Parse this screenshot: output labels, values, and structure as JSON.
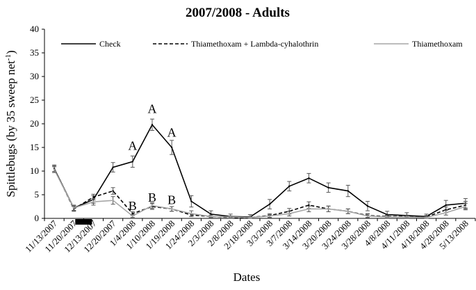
{
  "chart_data": {
    "type": "line",
    "title": "2007/2008 - Adults",
    "xlabel": "Dates",
    "ylabel": "Spittlebugs (by 35 sweep net",
    "ylabel_sup": "-1",
    "ylabel_close": ")",
    "ylim": [
      0,
      40
    ],
    "yticks": [
      0,
      5,
      10,
      15,
      20,
      25,
      30,
      35,
      40
    ],
    "grid": false,
    "legend_position": "top",
    "categories": [
      "11/13/2007",
      "11/20/2007",
      "12/13/2007",
      "12/20/2007",
      "1/4/2008",
      "1/10/2008",
      "1/19/2008",
      "1/24/2008",
      "2/3/2008",
      "2/8/2008",
      "2/18/2008",
      "3/3/2008",
      "3/7/2008",
      "3/14/2008",
      "3/20/2008",
      "3/24/2008",
      "3/28/2008",
      "4/8/2008",
      "4/11/2008",
      "4/18/2008",
      "4/28/2008",
      "5/13/2008"
    ],
    "series": [
      {
        "name": "Check",
        "color": "#000000",
        "dash": "solid",
        "values": [
          10.5,
          2.2,
          4.0,
          10.8,
          12.0,
          19.8,
          15.0,
          3.6,
          0.9,
          0.4,
          0.3,
          3.0,
          6.8,
          8.5,
          6.5,
          5.8,
          2.6,
          0.8,
          0.6,
          0.4,
          2.8,
          3.2
        ],
        "errors": [
          0.8,
          0.6,
          0.8,
          1.0,
          1.2,
          1.2,
          1.5,
          1.2,
          0.7,
          0.5,
          0.5,
          1.0,
          1.0,
          1.0,
          1.0,
          1.2,
          1.0,
          0.7,
          0.6,
          0.5,
          1.0,
          1.0
        ]
      },
      {
        "name": "Thiamethoxam + Lambda-cyhalothrin",
        "color": "#000000",
        "dash": "dashed",
        "values": [
          10.5,
          2.0,
          4.5,
          5.8,
          1.0,
          2.5,
          2.0,
          0.7,
          0.4,
          0.2,
          0.2,
          0.6,
          1.5,
          2.8,
          2.0,
          1.5,
          0.6,
          0.4,
          0.4,
          0.3,
          1.8,
          2.8
        ],
        "errors": [
          0.6,
          0.5,
          0.6,
          0.7,
          0.4,
          0.6,
          0.5,
          0.3,
          0.3,
          0.2,
          0.2,
          0.4,
          0.6,
          0.7,
          0.6,
          0.5,
          0.4,
          0.3,
          0.3,
          0.3,
          0.6,
          0.8
        ]
      },
      {
        "name": "Thiamethoxam",
        "color": "#a6a6a6",
        "dash": "solid",
        "values": [
          10.3,
          2.2,
          3.5,
          3.8,
          0.5,
          2.7,
          2.0,
          1.0,
          0.4,
          0.3,
          0.2,
          0.5,
          1.0,
          2.0,
          2.0,
          1.5,
          0.5,
          0.3,
          0.3,
          0.2,
          1.2,
          2.5
        ],
        "errors": [
          0.6,
          0.5,
          0.7,
          0.8,
          0.3,
          0.6,
          0.5,
          0.6,
          0.3,
          0.2,
          0.2,
          0.3,
          0.5,
          0.6,
          0.6,
          0.5,
          0.4,
          0.3,
          0.3,
          0.2,
          0.5,
          0.7
        ]
      }
    ],
    "annotations": [
      {
        "text": "A",
        "category_index": 4,
        "y": 14.5
      },
      {
        "text": "B",
        "category_index": 4,
        "y": 1.8
      },
      {
        "text": "A",
        "category_index": 5,
        "y": 22.3
      },
      {
        "text": "B",
        "category_index": 5,
        "y": 3.5
      },
      {
        "text": "A",
        "category_index": 6,
        "y": 17.3
      },
      {
        "text": "B",
        "category_index": 6,
        "y": 3.0
      }
    ],
    "treatment_bar": {
      "from_index": 1,
      "to_index": 2
    }
  }
}
